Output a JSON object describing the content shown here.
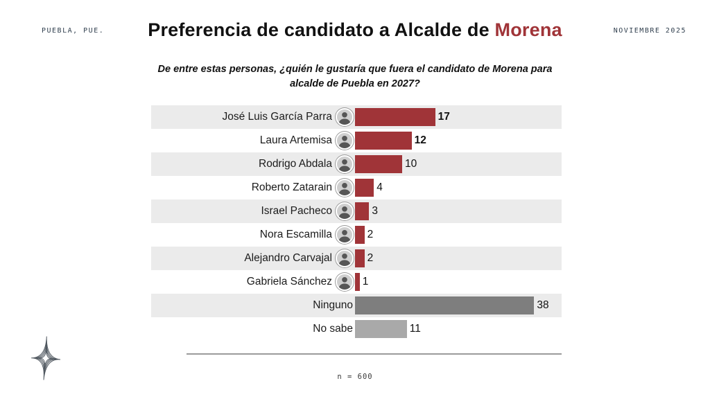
{
  "header": {
    "location": "PUEBLA, PUE.",
    "date": "NOVIEMBRE 2025",
    "title": {
      "prefix": "Preferencia de candidato a Alcalde de ",
      "accent": "Morena"
    }
  },
  "subtitle": "De entre estas personas, ¿quién le gustaría que fuera el candidato de Morena para alcalde de Puebla en 2027?",
  "footer": {
    "sample_size": "n = 600"
  },
  "colors": {
    "accent_red": "#a03438",
    "bar_red": "#a03438",
    "bar_dark_gray": "#7e7e7e",
    "bar_light_gray": "#a9a9a9",
    "stripe_gray": "#ebebeb",
    "mono_text": "#2f3e4d"
  },
  "chart_data": {
    "type": "bar",
    "orientation": "horizontal",
    "title": "Preferencia de candidato a Alcalde de Morena",
    "question": "De entre estas personas, ¿quién le gustaría que fuera el candidato de Morena para alcalde de Puebla en 2027?",
    "unit": "percent",
    "sample_n": 600,
    "xlim": [
      0,
      40
    ],
    "grid": false,
    "legend": false,
    "categories": [
      "José Luis García Parra",
      "Laura Artemisa",
      "Rodrigo Abdala",
      "Roberto Zatarain",
      "Israel Pacheco",
      "Nora Escamilla",
      "Alejandro Carvajal",
      "Gabriela Sánchez",
      "Ninguno",
      "No sabe"
    ],
    "values": [
      17,
      12,
      10,
      4,
      3,
      2,
      2,
      1,
      38,
      11
    ],
    "rows": [
      {
        "label": "José Luis García Parra",
        "value": 17,
        "color": "bar_red",
        "value_bold": true,
        "has_avatar": true
      },
      {
        "label": "Laura Artemisa",
        "value": 12,
        "color": "bar_red",
        "value_bold": true,
        "has_avatar": true
      },
      {
        "label": "Rodrigo Abdala",
        "value": 10,
        "color": "bar_red",
        "value_bold": false,
        "has_avatar": true
      },
      {
        "label": "Roberto Zatarain",
        "value": 4,
        "color": "bar_red",
        "value_bold": false,
        "has_avatar": true
      },
      {
        "label": "Israel Pacheco",
        "value": 3,
        "color": "bar_red",
        "value_bold": false,
        "has_avatar": true
      },
      {
        "label": "Nora Escamilla",
        "value": 2,
        "color": "bar_red",
        "value_bold": false,
        "has_avatar": true
      },
      {
        "label": "Alejandro Carvajal",
        "value": 2,
        "color": "bar_red",
        "value_bold": false,
        "has_avatar": true
      },
      {
        "label": "Gabriela Sánchez",
        "value": 1,
        "color": "bar_red",
        "value_bold": false,
        "has_avatar": true
      },
      {
        "label": "Ninguno",
        "value": 38,
        "color": "bar_dark_gray",
        "value_bold": false,
        "has_avatar": false
      },
      {
        "label": "No sabe",
        "value": 11,
        "color": "bar_light_gray",
        "value_bold": false,
        "has_avatar": false
      }
    ]
  }
}
